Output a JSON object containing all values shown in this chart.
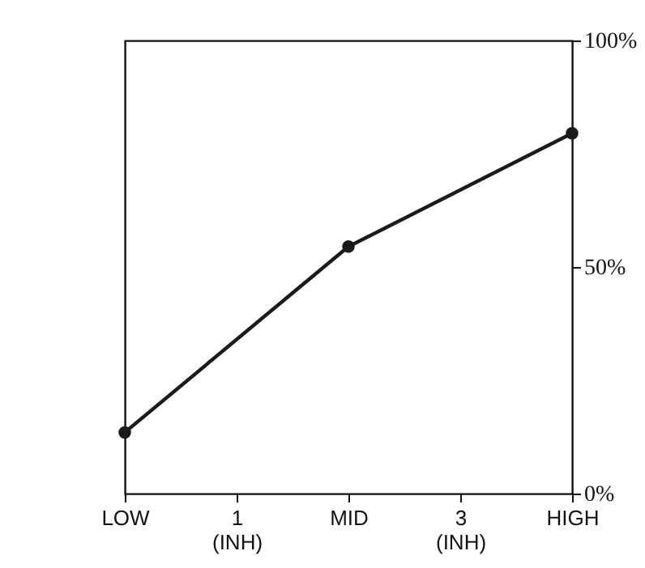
{
  "chart_data": {
    "type": "line",
    "categories": [
      "LOW",
      "1\n(INH)",
      "MID",
      "3\n(INH)",
      "HIGH"
    ],
    "series": [
      {
        "color": "#1a1a1a",
        "values": [
          13.5,
          null,
          54.5,
          null,
          79.5
        ]
      }
    ],
    "ylim": [
      0,
      100
    ],
    "yticks": [
      {
        "value": 0,
        "label": "0%"
      },
      {
        "value": 50,
        "label": "50%"
      },
      {
        "value": 100,
        "label": "100%"
      }
    ],
    "grid": false,
    "marker": "circle"
  }
}
